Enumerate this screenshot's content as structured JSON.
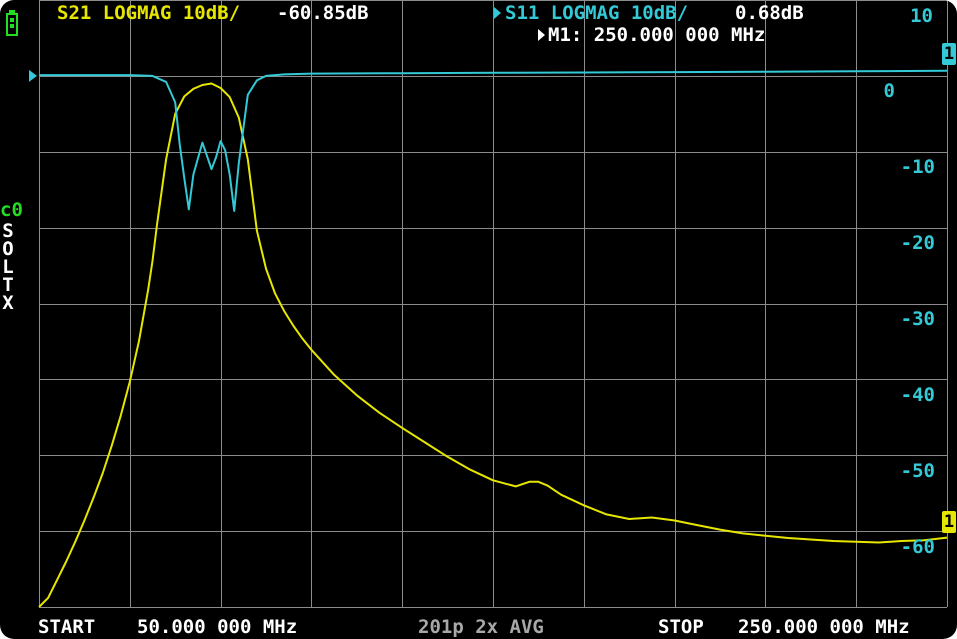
{
  "colors": {
    "background": "#000000",
    "trace_s21": "#e6e600",
    "trace_s11": "#33c9d6",
    "grid": "#8c8c8c",
    "text_white": "#ffffff",
    "text_gray": "#a8a8a8",
    "cal_green": "#22dd22",
    "battery": "#22dd22"
  },
  "header": {
    "trace1_label": "S21 LOGMAG 10dB/",
    "trace1_value": "-60.85dB",
    "trace2_label": "S11 LOGMAG 10dB/",
    "trace2_value": "0.68dB",
    "marker_readout": "M1: 250.000 000 MHz"
  },
  "status": {
    "battery_icon": "battery-icon",
    "cal_label": "c0",
    "cal_letters": [
      "S",
      "O",
      "L",
      "T",
      "X"
    ]
  },
  "footer": {
    "start_label": "START",
    "start_value": "50.000 000 MHz",
    "points_avg": "201p 2x AVG",
    "stop_label": "STOP",
    "stop_value": "250.000 000 MHz"
  },
  "markers": {
    "m1_s11_label": "1",
    "m1_s21_label": "1"
  },
  "chart_data": {
    "type": "line",
    "xlabel": "",
    "ylabel": "",
    "x_range_mhz": [
      50,
      250
    ],
    "y_axis_ticks": [
      "10",
      "0",
      "-10",
      "-20",
      "-30",
      "-40",
      "-50",
      "-60"
    ],
    "ylim_db": [
      -70,
      10
    ],
    "grid": true,
    "series": [
      {
        "name": "S21 LOGMAG 10dB/",
        "x_mhz": [
          50,
          52,
          54,
          56,
          58,
          60,
          62,
          64,
          66,
          68,
          70,
          72,
          74,
          75,
          76,
          78,
          80,
          82,
          84,
          86,
          88,
          90,
          92,
          94,
          96,
          98,
          100,
          102,
          104,
          106,
          108,
          110,
          115,
          120,
          125,
          130,
          135,
          140,
          145,
          150,
          155,
          158,
          160,
          162,
          165,
          170,
          175,
          180,
          185,
          190,
          195,
          200,
          205,
          210,
          215,
          220,
          225,
          230,
          235,
          240,
          245,
          250
        ],
        "y_db": [
          -70,
          -68.8,
          -66.4,
          -64,
          -61.4,
          -58.6,
          -55.6,
          -52.4,
          -48.8,
          -44.8,
          -40.3,
          -35,
          -28.3,
          -24.4,
          -19.6,
          -11,
          -5,
          -2.7,
          -1.7,
          -1.2,
          -1,
          -1.6,
          -2.8,
          -5.5,
          -11,
          -20.4,
          -25.4,
          -28.7,
          -31,
          -32.9,
          -34.6,
          -36.1,
          -39.4,
          -42.1,
          -44.4,
          -46.4,
          -48.3,
          -50.2,
          -51.9,
          -53.3,
          -54.1,
          -53.5,
          -53.5,
          -54,
          -55.2,
          -56.6,
          -57.8,
          -58.4,
          -58.2,
          -58.6,
          -59.2,
          -59.8,
          -60.3,
          -60.6,
          -60.9,
          -61.1,
          -61.3,
          -61.4,
          -61.5,
          -61.3,
          -61.2,
          -60.85
        ]
      },
      {
        "name": "S11 LOGMAG 10dB/",
        "x_mhz": [
          50,
          60,
          70,
          75,
          78,
          80,
          81,
          82,
          83,
          84,
          86,
          88,
          89,
          90,
          91,
          92,
          93,
          94,
          96,
          98,
          100,
          104,
          110,
          130,
          150,
          170,
          190,
          210,
          230,
          250
        ],
        "y_db": [
          0.1,
          0.1,
          0.1,
          0,
          -0.8,
          -3.5,
          -9,
          -13.5,
          -17.6,
          -13,
          -8.8,
          -12.3,
          -10.7,
          -8.6,
          -9.8,
          -13,
          -17.8,
          -11.5,
          -2.5,
          -0.6,
          0,
          0.2,
          0.3,
          0.35,
          0.4,
          0.45,
          0.5,
          0.55,
          0.6,
          0.68
        ]
      }
    ]
  }
}
